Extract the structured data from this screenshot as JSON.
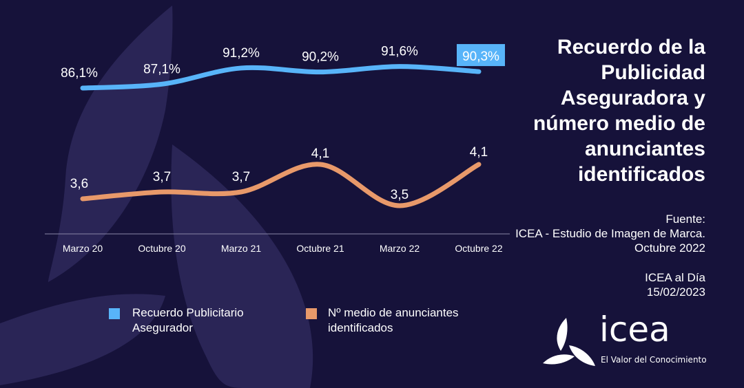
{
  "title": "Recuerdo de la Publicidad Aseguradora y número medio de anunciantes identificados",
  "source": {
    "label": "Fuente:",
    "text": "ICEA - Estudio de Imagen de Marca. Octubre 2022"
  },
  "footer": {
    "publication": "ICEA al Día",
    "date": "15/02/2023"
  },
  "logo": {
    "word": "icea",
    "tagline": "El Valor del Conocimiento"
  },
  "colors": {
    "background": "#16123a",
    "blue": "#58b4f9",
    "orange": "#e8996a"
  },
  "chart_data": {
    "type": "line",
    "categories": [
      "Marzo 20",
      "Octubre 20",
      "Marzo 21",
      "Octubre 21",
      "Marzo 22",
      "Octubre 22"
    ],
    "series": [
      {
        "name": "Recuerdo Publicitario Asegurador",
        "values": [
          86.1,
          87.1,
          91.2,
          90.2,
          91.6,
          90.3
        ],
        "labels": [
          "86,1%",
          "87,1%",
          "91,2%",
          "90,2%",
          "91,6%",
          "90,3%"
        ],
        "color": "#58b4f9"
      },
      {
        "name": "Nº medio de anunciantes identificados",
        "values": [
          3.6,
          3.7,
          3.7,
          4.1,
          3.5,
          4.1
        ],
        "labels": [
          "3,6",
          "3,7",
          "3,7",
          "4,1",
          "3,5",
          "4,1"
        ],
        "color": "#e8996a"
      }
    ],
    "legend": "bottom",
    "grid": false
  }
}
